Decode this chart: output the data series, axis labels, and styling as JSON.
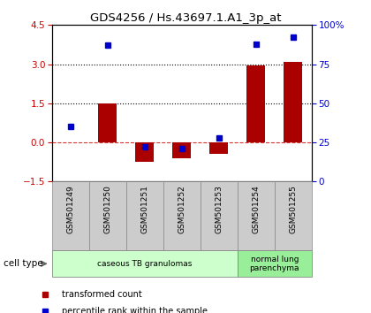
{
  "title": "GDS4256 / Hs.43697.1.A1_3p_at",
  "samples": [
    "GSM501249",
    "GSM501250",
    "GSM501251",
    "GSM501252",
    "GSM501253",
    "GSM501254",
    "GSM501255"
  ],
  "transformed_count": [
    0.0,
    1.5,
    -0.75,
    -0.62,
    -0.45,
    2.95,
    3.1
  ],
  "percentile_rank": [
    35,
    87,
    22,
    21,
    28,
    88,
    92
  ],
  "ylim_left": [
    -1.5,
    4.5
  ],
  "ylim_right": [
    0,
    100
  ],
  "yticks_left": [
    -1.5,
    0,
    1.5,
    3,
    4.5
  ],
  "yticks_right": [
    0,
    25,
    50,
    75,
    100
  ],
  "yticklabels_right": [
    "0",
    "25",
    "50",
    "75",
    "100%"
  ],
  "hlines_dotted": [
    1.5,
    3.0
  ],
  "hline_dashed": 0.0,
  "bar_color": "#aa0000",
  "dot_color": "#0000cc",
  "cell_type_groups": [
    {
      "label": "caseous TB granulomas",
      "indices": [
        0,
        1,
        2,
        3,
        4
      ],
      "color": "#ccffcc"
    },
    {
      "label": "normal lung\nparenchyma",
      "indices": [
        5,
        6
      ],
      "color": "#99ee99"
    }
  ],
  "cell_type_label": "cell type",
  "legend_items": [
    {
      "label": "transformed count",
      "color": "#aa0000"
    },
    {
      "label": "percentile rank within the sample",
      "color": "#0000cc"
    }
  ],
  "background_color": "#ffffff",
  "plot_bg_color": "#ffffff",
  "tick_label_color_left": "#cc0000",
  "tick_label_color_right": "#0000cc",
  "label_box_color": "#cccccc",
  "bar_width": 0.5
}
